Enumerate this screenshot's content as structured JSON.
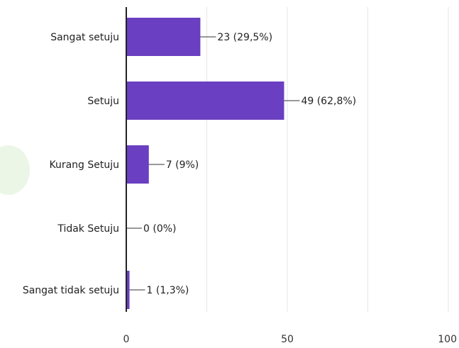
{
  "chart_data": {
    "type": "bar",
    "orientation": "horizontal",
    "categories": [
      "Sangat setuju",
      "Setuju",
      "Kurang Setuju",
      "Tidak Setuju",
      "Sangat tidak setuju"
    ],
    "values": [
      23,
      49,
      7,
      0,
      1
    ],
    "data_labels": [
      "23 (29,5%)",
      "49 (62,8%)",
      "7 (9%)",
      "0 (0%)",
      "1 (1,3%)"
    ],
    "xlim": [
      0,
      100
    ],
    "x_ticks": [
      0,
      50,
      100
    ],
    "x_tick_labels": [
      "0",
      "50",
      "100"
    ],
    "grid": true,
    "bar_color": "#6a3fc1",
    "axis_color": "#222222",
    "grid_color": "#e6e6e6"
  }
}
